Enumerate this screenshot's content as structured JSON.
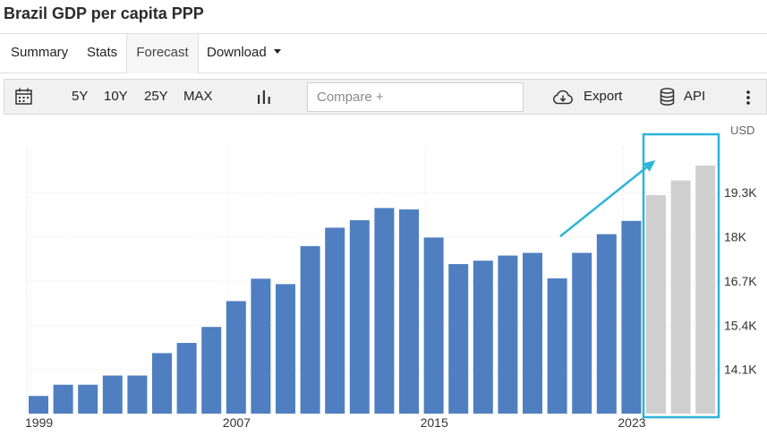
{
  "page": {
    "title": "Brazil GDP per capita PPP"
  },
  "tabs": [
    {
      "label": "Summary"
    },
    {
      "label": "Stats"
    },
    {
      "label": "Forecast"
    },
    {
      "label": "Download"
    }
  ],
  "toolbar": {
    "ranges": [
      "5Y",
      "10Y",
      "25Y",
      "MAX"
    ],
    "compare_placeholder": "Compare +",
    "export_label": "Export",
    "api_label": "API"
  },
  "colors": {
    "actual": "#4f7fc0",
    "forecast": "#cfcfcf",
    "highlight": "#2bb5d8"
  },
  "chart_data": {
    "type": "bar",
    "unit": "USD",
    "categories": [
      "1999",
      "2000",
      "2001",
      "2002",
      "2003",
      "2004",
      "2005",
      "2006",
      "2007",
      "2008",
      "2009",
      "2010",
      "2011",
      "2012",
      "2013",
      "2014",
      "2015",
      "2016",
      "2017",
      "2018",
      "2019",
      "2020",
      "2021",
      "2022",
      "2023",
      "2024",
      "2025",
      "2026"
    ],
    "series": [
      {
        "values": [
          13320,
          13650,
          13650,
          13920,
          13920,
          14580,
          14880,
          15350,
          16110,
          16770,
          16610,
          17730,
          18270,
          18490,
          18850,
          18810,
          17980,
          17200,
          17300,
          17450,
          17530,
          16780,
          17530,
          18080,
          18470,
          null,
          null,
          null
        ]
      },
      {
        "values": [
          null,
          null,
          null,
          null,
          null,
          null,
          null,
          null,
          null,
          null,
          null,
          null,
          null,
          null,
          null,
          null,
          null,
          null,
          null,
          null,
          null,
          null,
          null,
          null,
          null,
          19230,
          19660,
          20100
        ]
      }
    ],
    "yticks": [
      14100,
      15400,
      16700,
      18000,
      19300
    ],
    "ytick_labels": [
      "14.1K",
      "15.4K",
      "16.7K",
      "18K",
      "19.3K"
    ],
    "xtick_labels": [
      "1999",
      "2007",
      "2015",
      "2023"
    ],
    "ylim": [
      12800,
      20650
    ],
    "grid": true
  }
}
